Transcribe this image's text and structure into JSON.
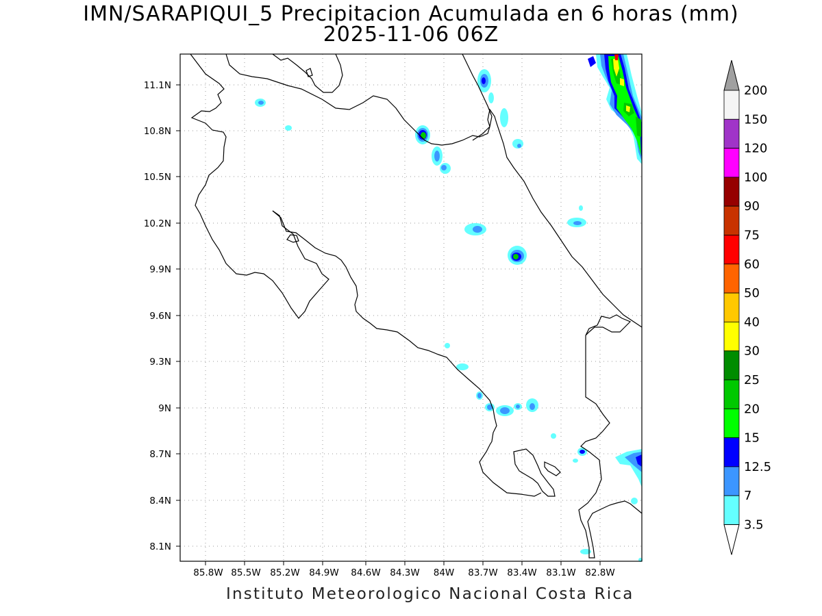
{
  "title": {
    "line1": "IMN/SARAPIQUI_5 Precipitacion Acumulada en 6 horas (mm)",
    "line2": "2025-11-06 06Z"
  },
  "footer": "Instituto Meteorologico Nacional Costa Rica",
  "map": {
    "lon_range": [
      -86.0,
      -82.6
    ],
    "lat_range": [
      8.0,
      11.3
    ],
    "lon_ticks": [
      "85.8W",
      "85.5W",
      "85.2W",
      "84.9W",
      "84.6W",
      "84.3W",
      "84W",
      "83.7W",
      "83.4W",
      "83.1W",
      "82.8W"
    ],
    "lat_ticks": [
      "11.1N",
      "10.8N",
      "10.5N",
      "10.2N",
      "9.9N",
      "9.6N",
      "9.3N",
      "9N",
      "8.7N",
      "8.4N",
      "8.1N"
    ],
    "grid": "dotted"
  },
  "colorbar": {
    "labels": [
      "200",
      "150",
      "120",
      "100",
      "90",
      "75",
      "60",
      "50",
      "40",
      "30",
      "25",
      "20",
      "15",
      "12.5",
      "7",
      "3.5"
    ],
    "colors": [
      "#a0a0a0",
      "#f5f5f5",
      "#a034c8",
      "#ff00ff",
      "#960000",
      "#c83200",
      "#ff0000",
      "#ff6400",
      "#ffc800",
      "#ffff00",
      "#008c00",
      "#00c800",
      "#00ff00",
      "#0000ff",
      "#3c96ff",
      "#64ffff",
      "#ffffff"
    ]
  }
}
